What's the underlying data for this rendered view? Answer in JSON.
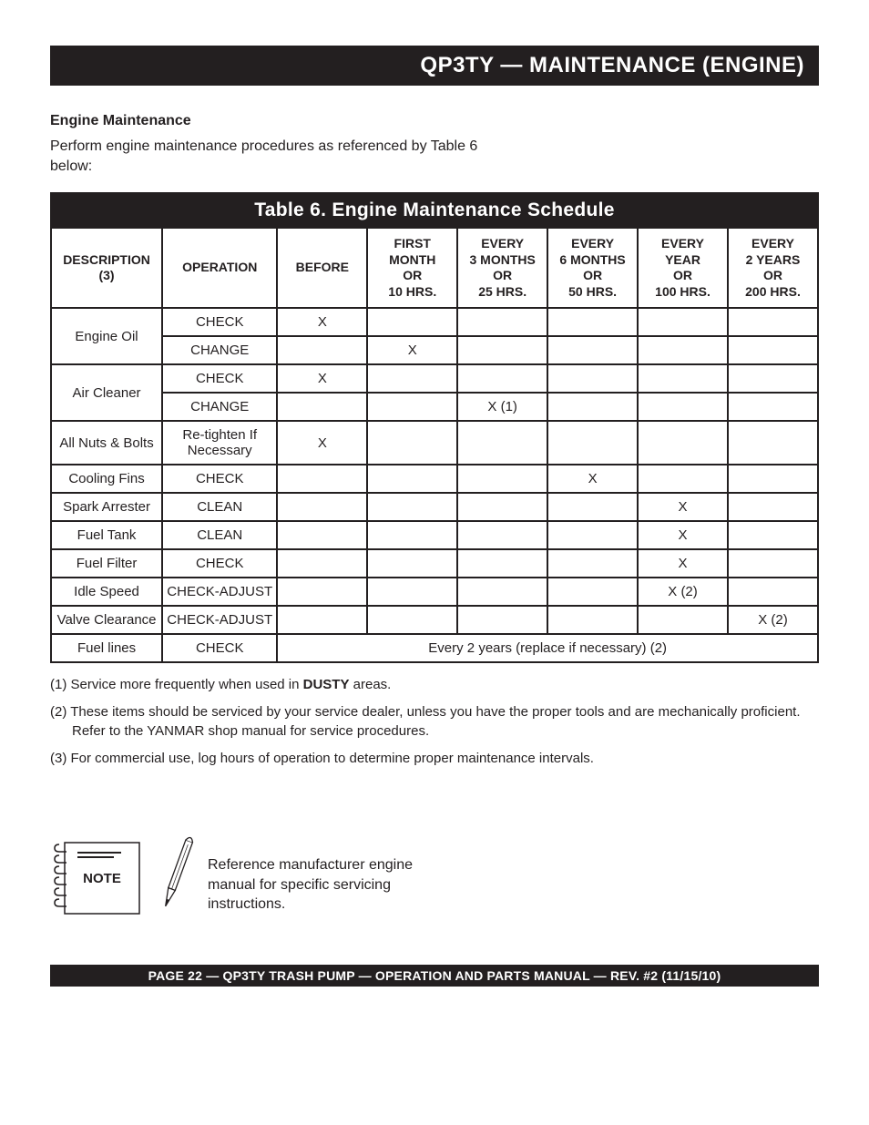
{
  "header_title": "QP3TY — MAINTENANCE (ENGINE)",
  "section_heading": "Engine Maintenance",
  "intro_text": "Perform engine maintenance procedures as referenced by Table 6 below:",
  "table": {
    "title": "Table 6. Engine Maintenance Schedule",
    "columns": [
      "DESCRIPTION (3)",
      "OPERATION",
      "BEFORE",
      "FIRST MONTH OR 10 HRS.",
      "EVERY 3 MONTHS OR 25 HRS.",
      "EVERY 6 MONTHS OR 50 HRS.",
      "EVERY YEAR OR 100 HRS.",
      "EVERY 2 YEARS OR 200 HRS."
    ],
    "rows": [
      {
        "desc": "Engine Oil",
        "rowspan": 2,
        "op": "CHECK",
        "cells": [
          "X",
          "",
          "",
          "",
          "",
          ""
        ]
      },
      {
        "desc": null,
        "op": "CHANGE",
        "cells": [
          "",
          "X",
          "",
          "",
          "",
          ""
        ]
      },
      {
        "desc": "Air Cleaner",
        "rowspan": 2,
        "op": "CHECK",
        "cells": [
          "X",
          "",
          "",
          "",
          "",
          ""
        ]
      },
      {
        "desc": null,
        "op": "CHANGE",
        "cells": [
          "",
          "",
          "X (1)",
          "",
          "",
          ""
        ]
      },
      {
        "desc": "All Nuts & Bolts",
        "rowspan": 1,
        "op": "Re-tighten If Necessary",
        "cells": [
          "X",
          "",
          "",
          "",
          "",
          ""
        ]
      },
      {
        "desc": "Cooling Fins",
        "rowspan": 1,
        "op": "CHECK",
        "cells": [
          "",
          "",
          "",
          "X",
          "",
          ""
        ]
      },
      {
        "desc": "Spark Arrester",
        "rowspan": 1,
        "op": "CLEAN",
        "cells": [
          "",
          "",
          "",
          "",
          "X",
          ""
        ]
      },
      {
        "desc": "Fuel Tank",
        "rowspan": 1,
        "op": "CLEAN",
        "cells": [
          "",
          "",
          "",
          "",
          "X",
          ""
        ]
      },
      {
        "desc": "Fuel Filter",
        "rowspan": 1,
        "op": "CHECK",
        "cells": [
          "",
          "",
          "",
          "",
          "X",
          ""
        ]
      },
      {
        "desc": "Idle Speed",
        "rowspan": 1,
        "op": "CHECK-ADJUST",
        "cells": [
          "",
          "",
          "",
          "",
          "X (2)",
          ""
        ]
      },
      {
        "desc": "Valve Clearance",
        "rowspan": 1,
        "op": "CHECK-ADJUST",
        "cells": [
          "",
          "",
          "",
          "",
          "",
          "X (2)"
        ]
      },
      {
        "desc": "Fuel lines",
        "rowspan": 1,
        "op": "CHECK",
        "merged": "Every 2 years (replace if necessary) (2)"
      }
    ]
  },
  "footnotes": [
    {
      "pre": "(1) Service more frequently when used in ",
      "bold": "DUSTY",
      "post": " areas."
    },
    {
      "pre": "(2) These items should be serviced by your service dealer, unless you have the proper tools and are mechanically proficient. Refer to the YANMAR shop manual for service procedures.",
      "bold": "",
      "post": ""
    },
    {
      "pre": "(3) For commercial use, log hours of operation to determine proper maintenance intervals.",
      "bold": "",
      "post": ""
    }
  ],
  "note_label": "NOTE",
  "note_text": "Reference manufacturer engine manual for specific servicing instructions.",
  "footer_text": "PAGE 22 — QP3TY TRASH PUMP — OPERATION AND PARTS MANUAL — REV. #2  (11/15/10)",
  "colors": {
    "black": "#231f20",
    "white": "#ffffff"
  }
}
